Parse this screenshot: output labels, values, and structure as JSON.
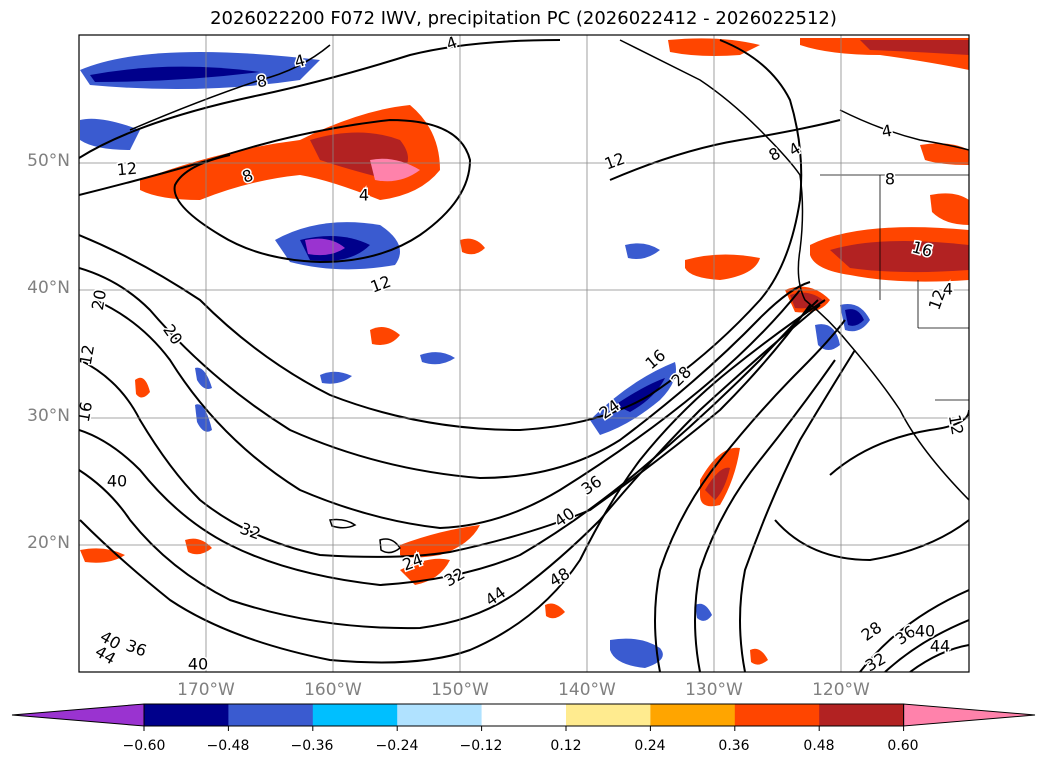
{
  "title": "2026022200 F072 IWV, precipitation PC (2026022412 - 2026022512)",
  "lat_labels": [
    "50°N",
    "40°N",
    "30°N",
    "20°N"
  ],
  "lon_labels": [
    "170°W",
    "160°W",
    "150°W",
    "140°W",
    "130°W",
    "120°W"
  ],
  "contour_labels": [
    "4",
    "8",
    "4",
    "12",
    "8",
    "4",
    "12",
    "12",
    "20",
    "20",
    "12",
    "16",
    "40",
    "32",
    "24",
    "32",
    "44",
    "48",
    "40",
    "36",
    "24",
    "28",
    "16",
    "4",
    "8",
    "4",
    "8",
    "16",
    "12",
    "4",
    "12",
    "28",
    "36",
    "40",
    "44",
    "40",
    "36",
    "44",
    "40",
    "32"
  ],
  "colorbar": {
    "tick_labels": [
      "−0.60",
      "−0.48",
      "−0.36",
      "−0.24",
      "−0.12",
      "0.12",
      "0.24",
      "0.36",
      "0.48",
      "0.60"
    ],
    "colors": [
      "#9a33d0",
      "#00008b",
      "#3a5bd0",
      "#00bfff",
      "#b0e2ff",
      "#ffffff",
      "#ffeb8f",
      "#ffa500",
      "#ff4500",
      "#b22222",
      "#ff82ab"
    ]
  }
}
